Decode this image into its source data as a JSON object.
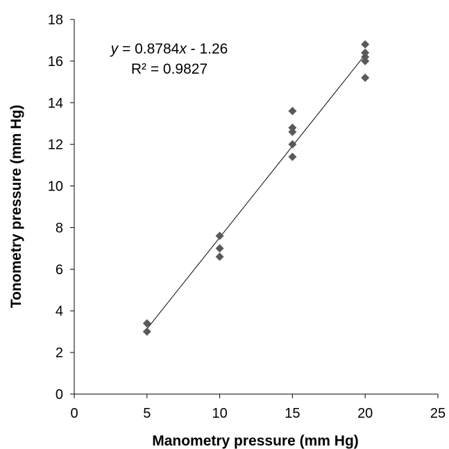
{
  "chart_data": {
    "type": "scatter",
    "xlabel": "Manometry pressure (mm Hg)",
    "ylabel": "Tonometry pressure (mm Hg)",
    "xlim": [
      0,
      25
    ],
    "ylim": [
      0,
      18
    ],
    "x_ticks": [
      "0",
      "5",
      "10",
      "15",
      "20",
      "25"
    ],
    "y_ticks": [
      "0",
      "2",
      "4",
      "6",
      "8",
      "10",
      "12",
      "14",
      "16",
      "18"
    ],
    "grid": false,
    "marker": "diamond",
    "marker_color": "#595959",
    "series": [
      {
        "points": [
          {
            "x": 5,
            "y": 3.4
          },
          {
            "x": 5,
            "y": 3.0
          },
          {
            "x": 10,
            "y": 7.6
          },
          {
            "x": 10,
            "y": 7.0
          },
          {
            "x": 10,
            "y": 6.6
          },
          {
            "x": 15,
            "y": 13.6
          },
          {
            "x": 15,
            "y": 12.8
          },
          {
            "x": 15,
            "y": 12.6
          },
          {
            "x": 15,
            "y": 12.0
          },
          {
            "x": 15,
            "y": 11.4
          },
          {
            "x": 20,
            "y": 16.8
          },
          {
            "x": 20,
            "y": 16.4
          },
          {
            "x": 20,
            "y": 16.2
          },
          {
            "x": 20,
            "y": 16.0
          },
          {
            "x": 20,
            "y": 15.2
          }
        ]
      }
    ],
    "trendline": {
      "type": "linear",
      "slope": 0.8784,
      "intercept": -1.26,
      "x_range": [
        5,
        20
      ],
      "color": "#000000"
    },
    "annotation": {
      "eq_var_y": "y",
      "eq_middle": " = 0.8784",
      "eq_var_x": "x",
      "eq_end": " - 1.26",
      "r_squared": "R² = 0.9827"
    }
  }
}
